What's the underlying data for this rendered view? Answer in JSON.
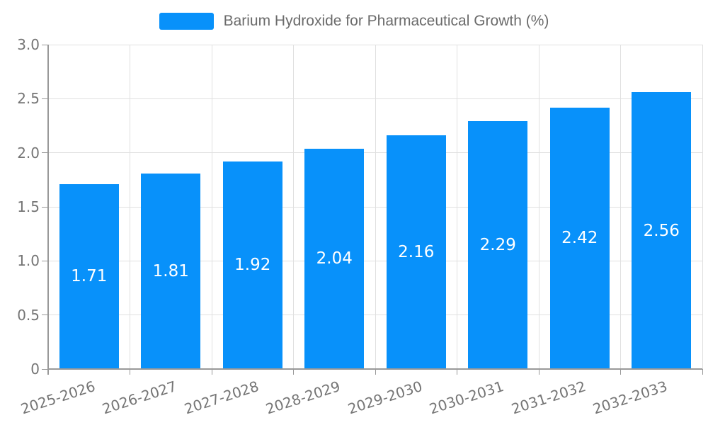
{
  "legend": {
    "label": "Barium Hydroxide for Pharmaceutical Growth (%)"
  },
  "chart_data": {
    "type": "bar",
    "title": "Barium Hydroxide for Pharmaceutical Growth (%)",
    "categories": [
      "2025-2026",
      "2026-2027",
      "2027-2028",
      "2028-2029",
      "2029-2030",
      "2030-2031",
      "2031-2032",
      "2032-2033"
    ],
    "values": [
      1.71,
      1.81,
      1.92,
      2.04,
      2.16,
      2.29,
      2.42,
      2.56
    ],
    "value_labels": [
      "1.71",
      "1.81",
      "1.92",
      "2.04",
      "2.16",
      "2.29",
      "2.42",
      "2.56"
    ],
    "xlabel": "",
    "ylabel": "",
    "ylim": [
      0,
      3
    ],
    "yticks": [
      0,
      0.5,
      1,
      1.5,
      2,
      2.5,
      3
    ],
    "ytick_labels": [
      "0",
      "0.5",
      "1.0",
      "1.5",
      "2.0",
      "2.5",
      "3.0"
    ],
    "grid": true,
    "legend_position": "top-center",
    "x_label_rotation_deg": -18,
    "colors": {
      "bar": "#0891FA",
      "grid": "#e0e0e0",
      "axis": "#999999",
      "tick_text": "#757575",
      "legend_text": "#6b6b6b",
      "value_text": "#ffffff",
      "background": "#ffffff"
    }
  }
}
